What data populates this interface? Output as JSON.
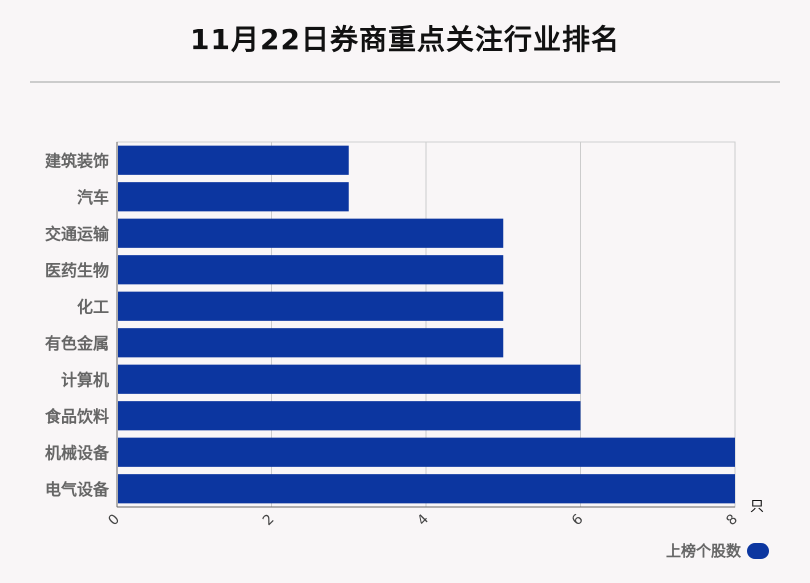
{
  "title": "11月22日券商重点关注行业排名",
  "chart_data": {
    "type": "bar",
    "orientation": "horizontal",
    "title": "11月22日券商重点关注行业排名",
    "categories": [
      "建筑装饰",
      "汽车",
      "交通运输",
      "医药生物",
      "化工",
      "有色金属",
      "计算机",
      "食品饮料",
      "机械设备",
      "电气设备"
    ],
    "series": [
      {
        "name": "上榜个股数",
        "values": [
          3,
          3,
          5,
          5,
          5,
          5,
          6,
          6,
          8,
          8
        ]
      }
    ],
    "x_ticks": [
      "0",
      "2",
      "4",
      "6",
      "8"
    ],
    "xlim": [
      0,
      8
    ],
    "x_unit": "只",
    "grid": true,
    "legend_position": "bottom-right",
    "bar_color": "#0c36a0"
  },
  "legend": {
    "label": "上榜个股数"
  }
}
